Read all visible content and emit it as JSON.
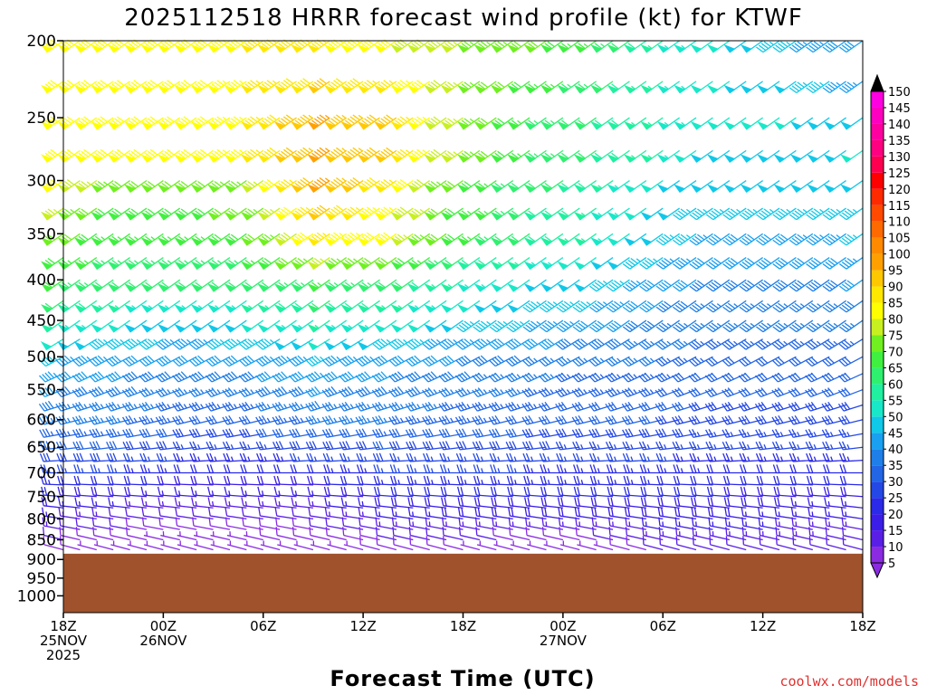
{
  "chart_data": {
    "type": "wind-barb-profile",
    "title": "2025112518 HRRR forecast wind profile (kt) for KTWF",
    "xlabel": "Forecast Time (UTC)",
    "ylabel": "",
    "units": "kt",
    "pressure_levels": [
      200,
      225,
      250,
      275,
      300,
      325,
      350,
      375,
      400,
      425,
      450,
      475,
      500,
      525,
      550,
      575,
      600,
      625,
      650,
      675,
      700,
      725,
      750,
      775,
      800,
      825,
      850,
      875
    ],
    "y_ticks": [
      "200",
      "250",
      "300",
      "350",
      "400",
      "450",
      "500",
      "550",
      "600",
      "650",
      "700",
      "750",
      "800",
      "850",
      "900",
      "950",
      "1000"
    ],
    "x_ticks": [
      {
        "h": 0,
        "line1": "18Z",
        "line2": "25NOV",
        "line3": "2025"
      },
      {
        "h": 6,
        "line1": "00Z",
        "line2": "26NOV",
        "line3": ""
      },
      {
        "h": 12,
        "line1": "06Z",
        "line2": "",
        "line3": ""
      },
      {
        "h": 18,
        "line1": "12Z",
        "line2": "",
        "line3": ""
      },
      {
        "h": 24,
        "line1": "18Z",
        "line2": "",
        "line3": ""
      },
      {
        "h": 30,
        "line1": "00Z",
        "line2": "27NOV",
        "line3": ""
      },
      {
        "h": 36,
        "line1": "06Z",
        "line2": "",
        "line3": ""
      },
      {
        "h": 42,
        "line1": "12Z",
        "line2": "",
        "line3": ""
      },
      {
        "h": 48,
        "line1": "18Z",
        "line2": "",
        "line3": ""
      }
    ],
    "forecast_hours": {
      "start": 0,
      "end": 48,
      "step": 1
    },
    "ground_pressure_hPa": 885,
    "ground_color": "#a0522d",
    "speed_anchors_kt": [
      {
        "p": 200,
        "speeds": [
          80,
          80,
          80,
          85,
          85,
          80,
          75,
          72,
          65,
          55,
          50,
          45,
          40
        ]
      },
      {
        "p": 250,
        "speeds": [
          80,
          80,
          80,
          85,
          95,
          90,
          75,
          65,
          60,
          55,
          50,
          50,
          48
        ]
      },
      {
        "p": 275,
        "speeds": [
          80,
          80,
          80,
          85,
          95,
          90,
          75,
          65,
          60,
          55,
          48,
          48,
          50
        ]
      },
      {
        "p": 300,
        "speeds": [
          80,
          70,
          70,
          75,
          95,
          85,
          70,
          62,
          58,
          50,
          48,
          48,
          48
        ]
      },
      {
        "p": 350,
        "speeds": [
          72,
          65,
          65,
          70,
          85,
          80,
          68,
          60,
          55,
          48,
          42,
          42,
          45
        ]
      },
      {
        "p": 400,
        "speeds": [
          65,
          60,
          60,
          60,
          65,
          62,
          55,
          50,
          48,
          42,
          38,
          38,
          40
        ]
      },
      {
        "p": 450,
        "speeds": [
          55,
          50,
          48,
          50,
          55,
          52,
          48,
          45,
          42,
          38,
          35,
          35,
          35
        ]
      },
      {
        "p": 500,
        "speeds": [
          45,
          42,
          40,
          42,
          45,
          42,
          40,
          38,
          35,
          35,
          32,
          32,
          32
        ]
      },
      {
        "p": 600,
        "speeds": [
          35,
          35,
          32,
          32,
          35,
          35,
          33,
          32,
          30,
          30,
          28,
          28,
          28
        ]
      },
      {
        "p": 700,
        "speeds": [
          25,
          25,
          22,
          22,
          22,
          25,
          25,
          25,
          24,
          24,
          22,
          22,
          22
        ]
      },
      {
        "p": 800,
        "speeds": [
          15,
          12,
          10,
          12,
          12,
          15,
          18,
          18,
          18,
          18,
          18,
          16,
          15
        ]
      },
      {
        "p": 875,
        "speeds": [
          8,
          6,
          5,
          5,
          6,
          8,
          8,
          5,
          5,
          10,
          12,
          12,
          10
        ]
      }
    ],
    "anchor_hours": [
      0,
      4,
      8,
      12,
      16,
      20,
      24,
      28,
      32,
      36,
      40,
      44,
      48
    ],
    "direction_deg_from": {
      "upper": 235,
      "mid": 270,
      "low": 285
    },
    "color_scale": {
      "ticks": [
        5,
        10,
        15,
        20,
        25,
        30,
        35,
        40,
        45,
        50,
        55,
        60,
        65,
        70,
        75,
        80,
        85,
        90,
        95,
        100,
        105,
        110,
        115,
        120,
        125,
        130,
        135,
        140,
        145,
        150
      ],
      "colors": [
        "#8a2be2",
        "#5a1fe6",
        "#3a1ee8",
        "#2a2ae8",
        "#2448e6",
        "#2266e6",
        "#1e7fe8",
        "#1aa0f0",
        "#10c8e8",
        "#18e8c8",
        "#20f0a0",
        "#30f070",
        "#40f040",
        "#70f020",
        "#c8f020",
        "#ffff00",
        "#ffe800",
        "#ffc800",
        "#ffa000",
        "#ff8a00",
        "#ff6a00",
        "#ff4a00",
        "#ff2a00",
        "#ff0000",
        "#ff0050",
        "#ff0080",
        "#ff00a0",
        "#ff00c0",
        "#ff00e0",
        "#ff40ff"
      ]
    }
  },
  "credit": "coolwx.com/models"
}
